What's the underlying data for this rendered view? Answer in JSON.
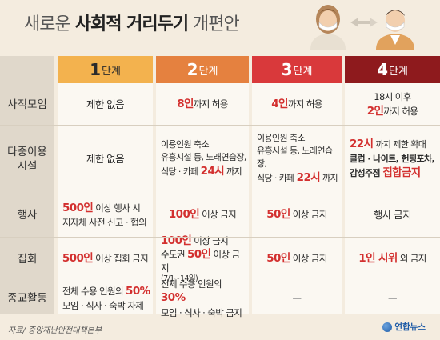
{
  "title": {
    "prefix": "새로운 ",
    "bold": "사회적 거리두기",
    "suffix": " 개편안"
  },
  "stages": [
    {
      "num": "1",
      "unit": "단계",
      "color": "#f3b24e"
    },
    {
      "num": "2",
      "unit": "단계",
      "color": "#e5813f"
    },
    {
      "num": "3",
      "unit": "단계",
      "color": "#d9393b"
    },
    {
      "num": "4",
      "unit": "단계",
      "color": "#8e1a1d"
    }
  ],
  "rows": {
    "private": "사적모임",
    "facility_1": "다중이용",
    "facility_2": "시설",
    "event": "행사",
    "rally": "집회",
    "religion": "종교활동"
  },
  "cells": {
    "private": {
      "s1": "제한 없음",
      "s2_red": "8인",
      "s2_rest": "까지 허용",
      "s3_red": "4인",
      "s3_rest": "까지 허용",
      "s4_line1": "18시 이후",
      "s4_red": "2인",
      "s4_rest": "까지 허용"
    },
    "facility": {
      "s1": "제한 없음",
      "s2_line1": "이용인원 축소",
      "s2_line2": "유흥시설 등, 노래연습장,",
      "s2_line3_pre": "식당 · 카페 ",
      "s2_line3_red": "24시",
      "s2_line3_post": " 까지",
      "s3_line1": "이용인원 축소",
      "s3_line2": "유흥시설 등, 노래연습장,",
      "s3_line3_pre": "식당 · 카페 ",
      "s3_line3_red": "22시",
      "s3_line3_post": " 까지",
      "s4_line1_red": "22시",
      "s4_line1_post": " 까지 제한 확대",
      "s4_line2": "클럽 · 나이트, 헌팅포차,",
      "s4_line3_pre": "감성주점 ",
      "s4_line3_red": "집합금지"
    },
    "event": {
      "s1_red": "500인",
      "s1_line1": " 이상 행사 시",
      "s1_line2": "지자체 사전 신고 · 협의",
      "s2_red": "100인",
      "s2_rest": " 이상 금지",
      "s3_red": "50인",
      "s3_rest": " 이상 금지",
      "s4": "행사 금지"
    },
    "rally": {
      "s1_red": "500인",
      "s1_rest": " 이상 집회 금지",
      "s2_line1_red": "100인",
      "s2_line1_rest": " 이상 금지",
      "s2_line2_pre": "수도권 ",
      "s2_line2_red": "50인",
      "s2_line2_rest": " 이상 금지",
      "s2_line3": "(7/1~14일)",
      "s3_red": "50인",
      "s3_rest": " 이상 금지",
      "s4_red": "1인 시위",
      "s4_rest": " 외 금지"
    },
    "religion": {
      "s1_line1_pre": "전체 수용 인원의 ",
      "s1_line1_red": "50%",
      "s1_line2": "모임 · 식사 · 숙박 자제",
      "s2_line1_pre": "전체 수용 인원의 ",
      "s2_line1_red": "30%",
      "s2_line2": "모임 · 식사 · 숙박 금지",
      "s3": "—",
      "s4": "—"
    }
  },
  "footer": {
    "source": "자료/ 중앙재난안전대책본부",
    "logo": "연합뉴스"
  }
}
